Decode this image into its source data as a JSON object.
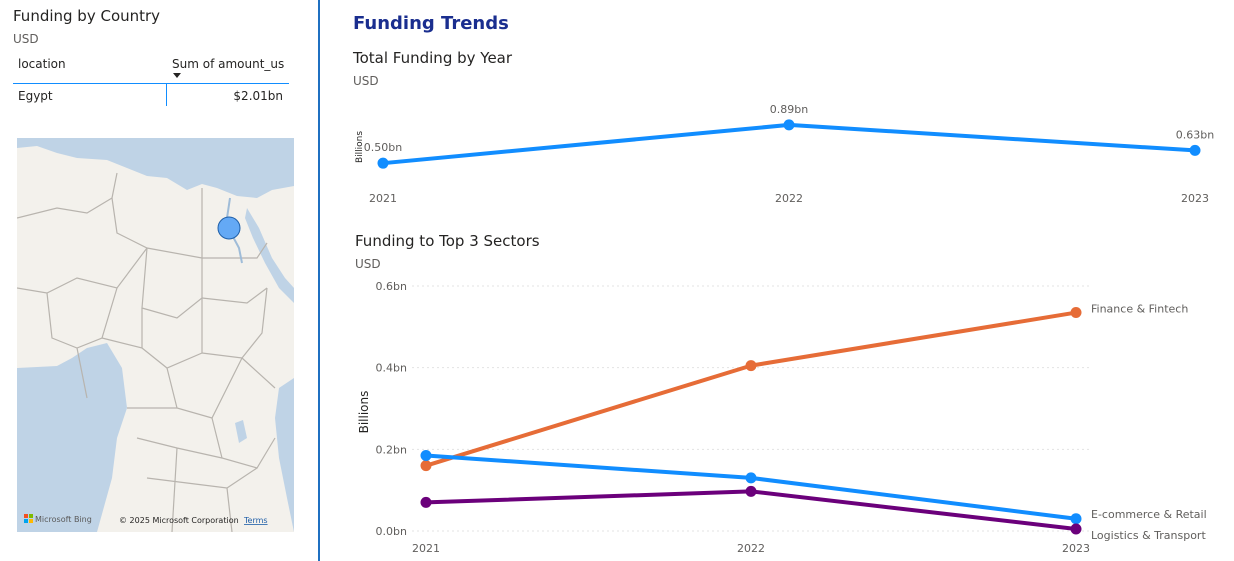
{
  "left": {
    "title": "Funding by Country",
    "subtitle": "USD",
    "table": {
      "col_location": "location",
      "col_amount": "Sum of amount_us",
      "rows": [
        {
          "location": "Egypt",
          "amount": "$2.01bn"
        }
      ]
    },
    "map": {
      "attribution_brand": "Microsoft Bing",
      "copyright": "© 2025 Microsoft Corporation",
      "terms_link": "Terms",
      "marker_color": "#64a9f5"
    }
  },
  "trends": {
    "title": "Funding Trends"
  },
  "chart_data": [
    {
      "type": "line",
      "title": "Total Funding by Year",
      "subtitle": "USD",
      "ylabel": "Billions",
      "x": [
        "2021",
        "2022",
        "2023"
      ],
      "series": [
        {
          "values": [
            0.5,
            0.89,
            0.63
          ],
          "labels": [
            "0.50bn",
            "0.89bn",
            "0.63bn"
          ],
          "color": "#118dff"
        }
      ],
      "ylim": [
        0.4,
        0.95
      ],
      "grid": false
    },
    {
      "type": "line",
      "title": "Funding to Top 3 Sectors",
      "subtitle": "USD",
      "ylabel": "Billions",
      "x": [
        "2021",
        "2022",
        "2023"
      ],
      "yticks": [
        0.0,
        0.2,
        0.4,
        0.6
      ],
      "ytick_labels": [
        "0.0bn",
        "0.2bn",
        "0.4bn",
        "0.6bn"
      ],
      "ylim": [
        0,
        0.6
      ],
      "grid": true,
      "series": [
        {
          "name": "Finance & Fintech",
          "values": [
            0.16,
            0.405,
            0.535
          ],
          "color": "#e66c37"
        },
        {
          "name": "E-commerce & Retail",
          "values": [
            0.185,
            0.13,
            0.03
          ],
          "color": "#118dff"
        },
        {
          "name": "Logistics & Transport",
          "values": [
            0.07,
            0.097,
            0.005
          ],
          "color": "#6b007b"
        }
      ]
    }
  ]
}
